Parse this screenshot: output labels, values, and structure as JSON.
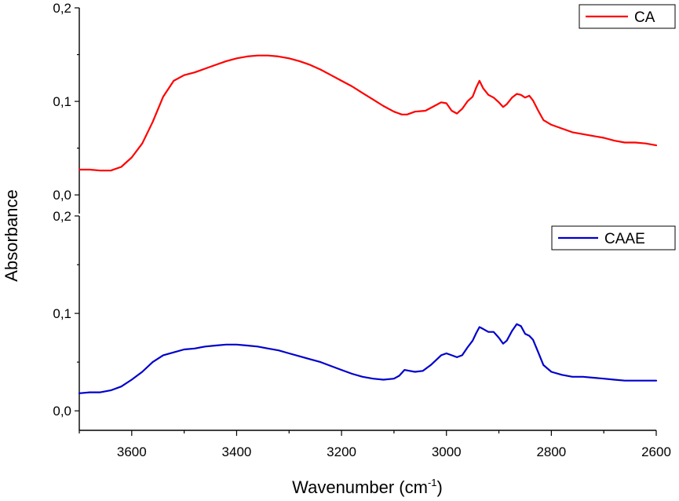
{
  "chart_data": {
    "type": "line",
    "xlabel": "Wavenumber (cm",
    "xlabel_sup": "-1",
    "xlabel_close": ")",
    "ylabel": "Absorbance",
    "xlim": [
      3700,
      2600
    ],
    "x_ticks": [
      "3600",
      "3400",
      "3200",
      "3000",
      "2800",
      "2600"
    ],
    "x_tick_values": [
      3600,
      3400,
      3200,
      3000,
      2800,
      2600
    ],
    "panels": [
      {
        "ylim": [
          -0.02,
          0.2
        ],
        "y_ticks": [
          "0,0",
          "0,1",
          "0,2"
        ],
        "y_tick_values": [
          0.0,
          0.1,
          0.2
        ],
        "legend_position": "top-right",
        "series": [
          {
            "name": "CA",
            "color": "#ff0000",
            "points": [
              [
                3700,
                0.027
              ],
              [
                3680,
                0.027
              ],
              [
                3660,
                0.026
              ],
              [
                3640,
                0.026
              ],
              [
                3620,
                0.03
              ],
              [
                3600,
                0.04
              ],
              [
                3580,
                0.055
              ],
              [
                3560,
                0.078
              ],
              [
                3540,
                0.105
              ],
              [
                3520,
                0.122
              ],
              [
                3500,
                0.128
              ],
              [
                3480,
                0.131
              ],
              [
                3460,
                0.135
              ],
              [
                3440,
                0.139
              ],
              [
                3420,
                0.143
              ],
              [
                3400,
                0.146
              ],
              [
                3380,
                0.148
              ],
              [
                3360,
                0.149
              ],
              [
                3340,
                0.149
              ],
              [
                3320,
                0.148
              ],
              [
                3300,
                0.146
              ],
              [
                3280,
                0.143
              ],
              [
                3260,
                0.139
              ],
              [
                3240,
                0.134
              ],
              [
                3220,
                0.128
              ],
              [
                3200,
                0.122
              ],
              [
                3180,
                0.116
              ],
              [
                3160,
                0.109
              ],
              [
                3140,
                0.102
              ],
              [
                3120,
                0.095
              ],
              [
                3100,
                0.089
              ],
              [
                3085,
                0.086
              ],
              [
                3075,
                0.086
              ],
              [
                3060,
                0.089
              ],
              [
                3040,
                0.09
              ],
              [
                3020,
                0.096
              ],
              [
                3010,
                0.099
              ],
              [
                3000,
                0.098
              ],
              [
                2990,
                0.09
              ],
              [
                2980,
                0.087
              ],
              [
                2970,
                0.092
              ],
              [
                2960,
                0.1
              ],
              [
                2950,
                0.105
              ],
              [
                2943,
                0.115
              ],
              [
                2937,
                0.122
              ],
              [
                2930,
                0.114
              ],
              [
                2920,
                0.107
              ],
              [
                2910,
                0.104
              ],
              [
                2900,
                0.099
              ],
              [
                2892,
                0.094
              ],
              [
                2885,
                0.097
              ],
              [
                2875,
                0.104
              ],
              [
                2866,
                0.108
              ],
              [
                2858,
                0.107
              ],
              [
                2850,
                0.104
              ],
              [
                2842,
                0.106
              ],
              [
                2835,
                0.101
              ],
              [
                2825,
                0.09
              ],
              [
                2815,
                0.08
              ],
              [
                2800,
                0.075
              ],
              [
                2780,
                0.071
              ],
              [
                2760,
                0.067
              ],
              [
                2740,
                0.065
              ],
              [
                2720,
                0.063
              ],
              [
                2700,
                0.061
              ],
              [
                2680,
                0.058
              ],
              [
                2660,
                0.056
              ],
              [
                2640,
                0.056
              ],
              [
                2620,
                0.055
              ],
              [
                2600,
                0.053
              ]
            ]
          }
        ]
      },
      {
        "ylim": [
          -0.02,
          0.2
        ],
        "y_ticks": [
          "0,0",
          "0,1",
          "0,2"
        ],
        "y_tick_values": [
          0.0,
          0.1,
          0.2
        ],
        "legend_position": "top-right",
        "series": [
          {
            "name": "CAAE",
            "color": "#0000cc",
            "points": [
              [
                3700,
                0.018
              ],
              [
                3680,
                0.019
              ],
              [
                3660,
                0.019
              ],
              [
                3640,
                0.021
              ],
              [
                3620,
                0.025
              ],
              [
                3600,
                0.032
              ],
              [
                3580,
                0.04
              ],
              [
                3560,
                0.05
              ],
              [
                3540,
                0.057
              ],
              [
                3520,
                0.06
              ],
              [
                3500,
                0.063
              ],
              [
                3480,
                0.064
              ],
              [
                3460,
                0.066
              ],
              [
                3440,
                0.067
              ],
              [
                3420,
                0.068
              ],
              [
                3400,
                0.068
              ],
              [
                3380,
                0.067
              ],
              [
                3360,
                0.066
              ],
              [
                3340,
                0.064
              ],
              [
                3320,
                0.062
              ],
              [
                3300,
                0.059
              ],
              [
                3280,
                0.056
              ],
              [
                3260,
                0.053
              ],
              [
                3240,
                0.05
              ],
              [
                3220,
                0.046
              ],
              [
                3200,
                0.042
              ],
              [
                3180,
                0.038
              ],
              [
                3160,
                0.035
              ],
              [
                3140,
                0.033
              ],
              [
                3120,
                0.032
              ],
              [
                3100,
                0.033
              ],
              [
                3090,
                0.036
              ],
              [
                3080,
                0.042
              ],
              [
                3070,
                0.041
              ],
              [
                3060,
                0.04
              ],
              [
                3045,
                0.041
              ],
              [
                3030,
                0.047
              ],
              [
                3020,
                0.052
              ],
              [
                3010,
                0.057
              ],
              [
                3000,
                0.059
              ],
              [
                2990,
                0.057
              ],
              [
                2980,
                0.055
              ],
              [
                2970,
                0.057
              ],
              [
                2960,
                0.065
              ],
              [
                2950,
                0.072
              ],
              [
                2943,
                0.08
              ],
              [
                2937,
                0.086
              ],
              [
                2930,
                0.084
              ],
              [
                2920,
                0.081
              ],
              [
                2910,
                0.081
              ],
              [
                2900,
                0.075
              ],
              [
                2892,
                0.069
              ],
              [
                2885,
                0.072
              ],
              [
                2875,
                0.082
              ],
              [
                2866,
                0.089
              ],
              [
                2858,
                0.087
              ],
              [
                2850,
                0.079
              ],
              [
                2842,
                0.077
              ],
              [
                2835,
                0.073
              ],
              [
                2825,
                0.06
              ],
              [
                2815,
                0.047
              ],
              [
                2800,
                0.04
              ],
              [
                2780,
                0.037
              ],
              [
                2760,
                0.035
              ],
              [
                2740,
                0.035
              ],
              [
                2720,
                0.034
              ],
              [
                2700,
                0.033
              ],
              [
                2680,
                0.032
              ],
              [
                2660,
                0.031
              ],
              [
                2640,
                0.031
              ],
              [
                2620,
                0.031
              ],
              [
                2600,
                0.031
              ]
            ]
          }
        ]
      }
    ]
  }
}
